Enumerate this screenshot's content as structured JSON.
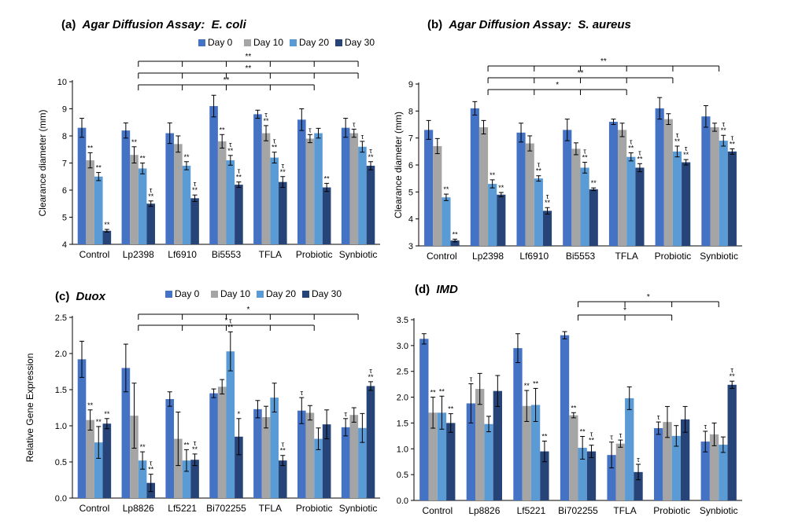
{
  "colors": {
    "Day 0": "#4472c4",
    "Day 10": "#a5a5a5",
    "Day 20": "#5b9bd5",
    "Day 30": "#264478"
  },
  "chart_data": [
    {
      "type": "bar",
      "label": "(a)",
      "title": "Agar Diffusion Assay:",
      "title_italic": "E. coli",
      "ylabel": "Clearance diameter (mm)",
      "ylim": [
        4,
        10
      ],
      "yticks": [
        4,
        5,
        6,
        7,
        8,
        9,
        10
      ],
      "grid": false,
      "legend": "top",
      "categories": [
        "Control",
        "Lp2398",
        "Lf6910",
        "Bi5553",
        "TFLA",
        "Probiotic",
        "Synbiotic"
      ],
      "series": [
        {
          "name": "Day 0",
          "values": [
            8.3,
            8.2,
            8.1,
            9.1,
            8.8,
            8.6,
            8.3
          ],
          "errors": [
            0.35,
            0.28,
            0.38,
            0.4,
            0.15,
            0.4,
            0.35
          ],
          "marks": [
            "",
            "",
            "",
            "",
            "",
            "",
            ""
          ]
        },
        {
          "name": "Day 10",
          "values": [
            7.1,
            7.3,
            7.7,
            7.8,
            8.1,
            7.9,
            8.1
          ],
          "errors": [
            0.28,
            0.3,
            0.3,
            0.25,
            0.28,
            0.15,
            0.15
          ],
          "marks": [
            "**",
            "**",
            "",
            "**",
            "τ **",
            "τ",
            "τ"
          ]
        },
        {
          "name": "Day 20",
          "values": [
            6.5,
            6.8,
            6.9,
            7.1,
            7.2,
            8.1,
            7.6
          ],
          "errors": [
            0.15,
            0.2,
            0.15,
            0.18,
            0.2,
            0.18,
            0.2
          ],
          "marks": [
            "**",
            "**",
            "**",
            "τ **",
            "τ **",
            "",
            "τ"
          ]
        },
        {
          "name": "Day 30",
          "values": [
            4.5,
            5.5,
            5.7,
            6.2,
            6.3,
            6.1,
            6.9
          ],
          "errors": [
            0.05,
            0.1,
            0.12,
            0.1,
            0.2,
            0.15,
            0.15
          ],
          "marks": [
            "**",
            "τ **",
            "τ **",
            "τ **",
            "τ **",
            "**",
            "τ **"
          ]
        }
      ],
      "brackets": [
        {
          "from": 1,
          "to": 6,
          "label": "**",
          "legs": [
            1,
            2,
            3,
            4,
            5,
            6
          ]
        },
        {
          "from": 1,
          "to": 6,
          "label": "**",
          "legs": [
            1,
            2,
            3,
            4,
            5,
            6
          ]
        },
        {
          "from": 1,
          "to": 5,
          "label": "**",
          "legs": [
            1,
            2,
            3,
            4,
            5
          ]
        }
      ]
    },
    {
      "type": "bar",
      "label": "(b)",
      "title": "Agar Diffusion Assay:",
      "title_italic": "S. aureus",
      "ylabel": "Clearance diameter (mm)",
      "ylim": [
        3,
        9
      ],
      "yticks": [
        3,
        4,
        5,
        6,
        7,
        8,
        9
      ],
      "grid": false,
      "legend": "",
      "categories": [
        "Control",
        "Lp2398",
        "Lf6910",
        "Bi5553",
        "TFLA",
        "Probiotic",
        "Synbiotic"
      ],
      "series": [
        {
          "name": "Day 0",
          "values": [
            7.3,
            8.1,
            7.2,
            7.3,
            7.6,
            8.1,
            7.8
          ],
          "errors": [
            0.35,
            0.25,
            0.35,
            0.4,
            0.1,
            0.4,
            0.4
          ],
          "marks": [
            "",
            "",
            "",
            "",
            "",
            "",
            ""
          ]
        },
        {
          "name": "Day 10",
          "values": [
            6.7,
            7.4,
            6.8,
            6.6,
            7.3,
            7.7,
            7.4
          ],
          "errors": [
            0.28,
            0.25,
            0.28,
            0.22,
            0.25,
            0.2,
            0.15
          ],
          "marks": [
            "",
            "",
            "",
            "",
            "",
            "",
            ""
          ]
        },
        {
          "name": "Day 20",
          "values": [
            4.8,
            5.3,
            5.5,
            5.9,
            6.3,
            6.5,
            6.9
          ],
          "errors": [
            0.12,
            0.15,
            0.1,
            0.2,
            0.15,
            0.2,
            0.2
          ],
          "marks": [
            "**",
            "**",
            "τ **",
            "τ **",
            "τ **",
            "τ **",
            "τ **"
          ]
        },
        {
          "name": "Day 30",
          "values": [
            3.2,
            4.9,
            4.3,
            5.1,
            5.9,
            6.1,
            6.5
          ],
          "errors": [
            0.05,
            0.08,
            0.12,
            0.05,
            0.15,
            0.1,
            0.1
          ],
          "marks": [
            "**",
            "**",
            "τ **",
            "**",
            "τ **",
            "τ **",
            "τ **"
          ]
        }
      ],
      "brackets": [
        {
          "from": 1,
          "to": 6,
          "label": "**",
          "legs": [
            1,
            2,
            3,
            4,
            5,
            6
          ]
        },
        {
          "from": 1,
          "to": 5,
          "label": "**",
          "legs": [
            1,
            2,
            3,
            4,
            5
          ]
        },
        {
          "from": 1,
          "to": 4,
          "label": "*",
          "legs": [
            1,
            2,
            3,
            4
          ]
        }
      ]
    },
    {
      "type": "bar",
      "label": "(c)",
      "title": "",
      "title_italic": "Duox",
      "ylabel": "Relative Gene Expression",
      "ylim": [
        0.0,
        2.5
      ],
      "yticks": [
        0.0,
        0.5,
        1.0,
        1.5,
        2.0,
        2.5
      ],
      "grid": false,
      "legend": "top",
      "categories": [
        "Control",
        "Lp8826",
        "Lf5221",
        "Bi702255",
        "TFLA",
        "Probiotic",
        "Synbiotic"
      ],
      "series": [
        {
          "name": "Day 0",
          "values": [
            1.92,
            1.8,
            1.37,
            1.45,
            1.23,
            1.21,
            0.98
          ],
          "errors": [
            0.25,
            0.33,
            0.1,
            0.06,
            0.12,
            0.18,
            0.12
          ],
          "marks": [
            "",
            "",
            "",
            "",
            "",
            "τ",
            "τ"
          ]
        },
        {
          "name": "Day 10",
          "values": [
            1.08,
            1.14,
            0.82,
            1.54,
            1.12,
            1.18,
            1.15
          ],
          "errors": [
            0.14,
            0.45,
            0.37,
            0.1,
            0.15,
            0.1,
            0.1
          ],
          "marks": [
            "**",
            "",
            "",
            "",
            "",
            "",
            ""
          ]
        },
        {
          "name": "Day 20",
          "values": [
            0.77,
            0.52,
            0.52,
            2.03,
            1.39,
            0.82,
            0.97
          ],
          "errors": [
            0.22,
            0.12,
            0.15,
            0.27,
            0.2,
            0.15,
            0.2
          ],
          "marks": [
            "**",
            "**",
            "**",
            "τ **",
            "",
            "",
            ""
          ]
        },
        {
          "name": "Day 30",
          "values": [
            1.03,
            0.21,
            0.53,
            0.85,
            0.52,
            1.02,
            1.55
          ],
          "errors": [
            0.07,
            0.12,
            0.08,
            0.25,
            0.07,
            0.2,
            0.06
          ],
          "marks": [
            "**",
            "τ **",
            "τ **",
            "*",
            "τ **",
            "",
            "τ **"
          ]
        }
      ],
      "brackets": [
        {
          "from": 1,
          "to": 6,
          "label": "*",
          "legs": [
            1,
            2,
            3,
            4,
            5,
            6
          ]
        },
        {
          "from": 1,
          "to": 5,
          "label": "*",
          "legs": [
            1,
            2,
            3,
            4,
            5
          ]
        }
      ]
    },
    {
      "type": "bar",
      "label": "(d)",
      "title": "",
      "title_italic": "IMD",
      "ylabel": "",
      "ylim": [
        0.0,
        3.5
      ],
      "yticks": [
        0.0,
        0.5,
        1.0,
        1.5,
        2.0,
        2.5,
        3.0,
        3.5
      ],
      "grid": false,
      "legend": "",
      "categories": [
        "Control",
        "Lp8826",
        "Lf5221",
        "Bi702255",
        "TFLA",
        "Probiotic",
        "Synbiotic"
      ],
      "series": [
        {
          "name": "Day 0",
          "values": [
            3.13,
            1.88,
            2.95,
            3.2,
            0.88,
            1.4,
            1.14
          ],
          "errors": [
            0.1,
            0.38,
            0.28,
            0.07,
            0.25,
            0.12,
            0.2
          ],
          "marks": [
            "",
            "τ",
            "",
            "",
            "τ",
            "τ",
            "τ"
          ]
        },
        {
          "name": "Day 10",
          "values": [
            1.7,
            2.16,
            1.83,
            1.65,
            1.1,
            1.52,
            1.28
          ],
          "errors": [
            0.3,
            0.3,
            0.3,
            0.05,
            0.07,
            0.3,
            0.22
          ],
          "marks": [
            "**",
            "",
            "**",
            "**",
            "τ",
            "",
            ""
          ]
        },
        {
          "name": "Day 20",
          "values": [
            1.7,
            1.48,
            1.85,
            1.02,
            1.98,
            1.25,
            1.08
          ],
          "errors": [
            0.32,
            0.15,
            0.32,
            0.22,
            0.22,
            0.2,
            0.15
          ],
          "marks": [
            "**",
            "",
            "**",
            "**",
            "",
            "",
            ""
          ]
        },
        {
          "name": "Day 30",
          "values": [
            1.5,
            2.12,
            0.95,
            0.95,
            0.55,
            1.57,
            2.24
          ],
          "errors": [
            0.18,
            0.3,
            0.2,
            0.12,
            0.15,
            0.25,
            0.07
          ],
          "marks": [
            "**",
            "",
            "**",
            "τ **",
            "τ",
            "",
            "τ **"
          ]
        }
      ],
      "brackets": [
        {
          "from": 3,
          "to": 6,
          "label": "*",
          "legs": [
            3,
            4,
            5,
            6
          ]
        },
        {
          "from": 3,
          "to": 5,
          "label": "*",
          "legs": [
            3,
            4,
            5
          ]
        }
      ]
    }
  ]
}
